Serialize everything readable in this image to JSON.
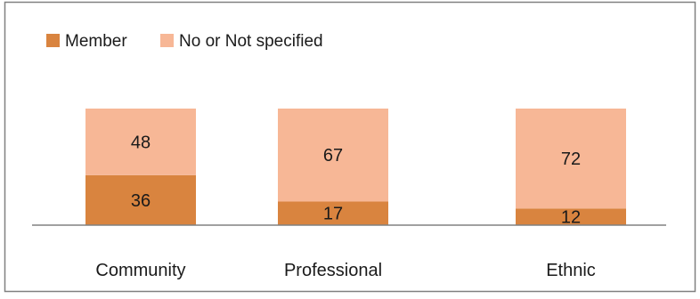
{
  "chart_data": {
    "type": "bar",
    "stacked": true,
    "categories": [
      "Community",
      "Professional",
      "Ethnic"
    ],
    "series": [
      {
        "name": "Member",
        "values": [
          36,
          17,
          12
        ],
        "color": "#d9843f"
      },
      {
        "name": "No or Not specified",
        "values": [
          48,
          67,
          72
        ],
        "color": "#f7b796"
      }
    ],
    "title": "",
    "xlabel": "",
    "ylabel": "",
    "ylim": [
      0,
      84
    ],
    "grid": false,
    "legend": "top-left",
    "axis_color": "#808080",
    "border_color": "#808080",
    "label_color": "#1a1a1a"
  }
}
